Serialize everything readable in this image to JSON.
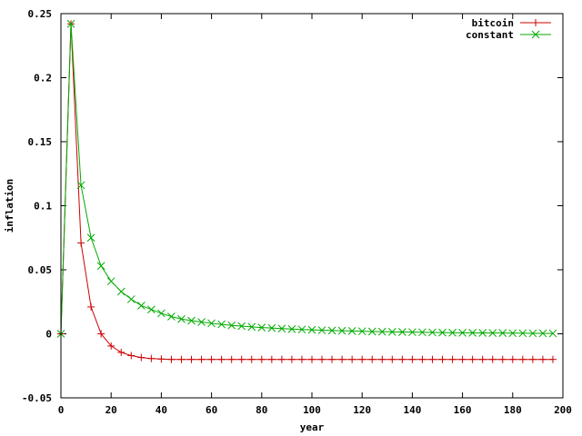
{
  "chart_data": {
    "type": "line",
    "title": "",
    "xlabel": "year",
    "ylabel": "inflation",
    "xlim": [
      0,
      200
    ],
    "ylim": [
      -0.05,
      0.25
    ],
    "grid": false,
    "legend_position": "top-right",
    "x_ticks": [
      "0",
      "20",
      "40",
      "60",
      "80",
      "100",
      "120",
      "140",
      "160",
      "180",
      "200"
    ],
    "x_tick_values": [
      0,
      20,
      40,
      60,
      80,
      100,
      120,
      140,
      160,
      180,
      200
    ],
    "y_ticks": [
      "-0.05",
      "0",
      "0.05",
      "0.1",
      "0.15",
      "0.2",
      "0.25"
    ],
    "y_tick_values": [
      -0.05,
      0,
      0.05,
      0.1,
      0.15,
      0.2,
      0.25
    ],
    "x": [
      0,
      4,
      8,
      12,
      16,
      20,
      24,
      28,
      32,
      36,
      40,
      44,
      48,
      52,
      56,
      60,
      64,
      68,
      72,
      76,
      80,
      84,
      88,
      92,
      96,
      100,
      104,
      108,
      112,
      116,
      120,
      124,
      128,
      132,
      136,
      140,
      144,
      148,
      152,
      156,
      160,
      164,
      168,
      172,
      176,
      180,
      184,
      188,
      192,
      196
    ],
    "series": [
      {
        "name": "bitcoin",
        "color": "#cc0000",
        "marker": "plus",
        "values": [
          0,
          0.242,
          0.071,
          0.021,
          0.0,
          -0.0095,
          -0.0145,
          -0.017,
          -0.0185,
          -0.0193,
          -0.0197,
          -0.02,
          -0.02,
          -0.02,
          -0.02,
          -0.02,
          -0.02,
          -0.02,
          -0.02,
          -0.02,
          -0.02,
          -0.02,
          -0.02,
          -0.02,
          -0.02,
          -0.02,
          -0.02,
          -0.02,
          -0.02,
          -0.02,
          -0.02,
          -0.02,
          -0.02,
          -0.02,
          -0.02,
          -0.02,
          -0.02,
          -0.02,
          -0.02,
          -0.02,
          -0.02,
          -0.02,
          -0.02,
          -0.02,
          -0.02,
          -0.02,
          -0.02,
          -0.02,
          -0.02,
          -0.02
        ]
      },
      {
        "name": "constant",
        "color": "#00aa00",
        "marker": "cross",
        "values": [
          0,
          0.242,
          0.116,
          0.075,
          0.053,
          0.041,
          0.033,
          0.027,
          0.022,
          0.019,
          0.016,
          0.0135,
          0.0115,
          0.0103,
          0.0092,
          0.0082,
          0.0074,
          0.0066,
          0.006,
          0.0054,
          0.0049,
          0.0045,
          0.0041,
          0.0037,
          0.0034,
          0.0031,
          0.0028,
          0.0026,
          0.0024,
          0.0022,
          0.002,
          0.0018,
          0.0017,
          0.0015,
          0.0014,
          0.0013,
          0.0012,
          0.0011,
          0.001,
          0.0009,
          0.0008,
          0.0008,
          0.0007,
          0.0006,
          0.0006,
          0.0005,
          0.0005,
          0.0004,
          0.0004,
          0.0003
        ]
      }
    ]
  }
}
